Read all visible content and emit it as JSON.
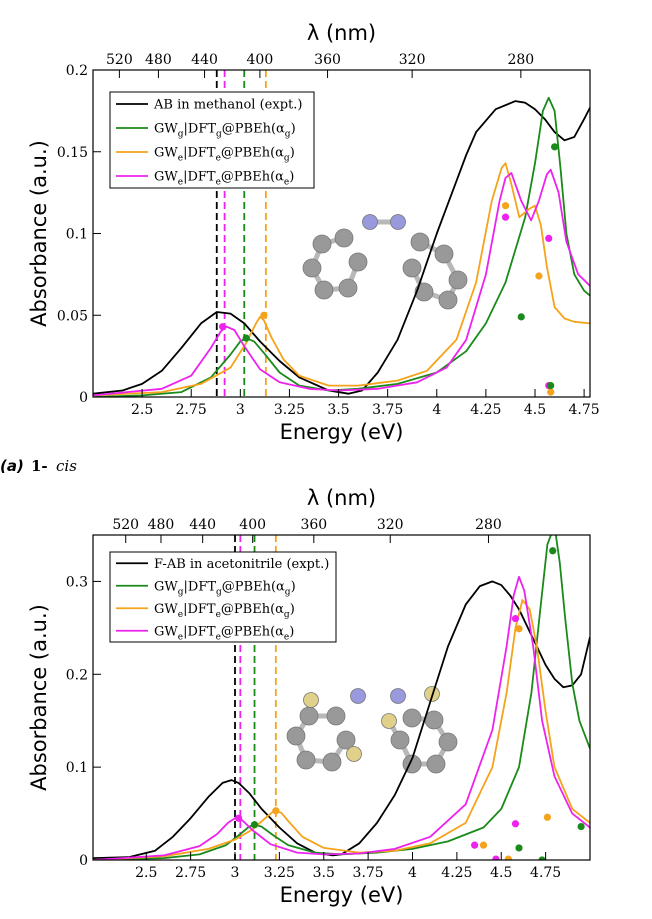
{
  "colors": {
    "expt": "#000000",
    "gwg": "#1a8a1a",
    "gwe_g": "#f5a31a",
    "gwe_e": "#ee22ee",
    "molecule_atom": "#999999",
    "molecule_n": "#9999dd",
    "molecule_f": "#e0d08a"
  },
  "caption": {
    "label": "(a)",
    "compound": "1-",
    "isomer": "cis"
  },
  "chart_data": [
    {
      "type": "line",
      "panel": "a",
      "xlabel": "Energy (eV)",
      "ylabel": "Absorbance (a.u.)",
      "top_xlabel": "λ (nm)",
      "xlim": [
        2.25,
        4.78
      ],
      "ylim": [
        0,
        0.2
      ],
      "x_ticks": [
        "2.5",
        "2.75",
        "3",
        "3.25",
        "3.5",
        "3.75",
        "4",
        "4.25",
        "4.5",
        "4.75"
      ],
      "x_tick_values": [
        2.5,
        2.75,
        3.0,
        3.25,
        3.5,
        3.75,
        4.0,
        4.25,
        4.5,
        4.75
      ],
      "y_ticks": [
        "0",
        "0.05",
        "0.1",
        "0.15",
        "0.2"
      ],
      "y_tick_values": [
        0,
        0.05,
        0.1,
        0.15,
        0.2
      ],
      "top_ticks": [
        "520",
        "480",
        "440",
        "400",
        "360",
        "320",
        "280"
      ],
      "top_tick_values": [
        520,
        480,
        440,
        400,
        360,
        320,
        280
      ],
      "legend": [
        {
          "key": "expt",
          "text": "AB in methanol (expt.)"
        },
        {
          "key": "gwg",
          "parts": [
            [
              "GW",
              ""
            ],
            [
              "g",
              "sub"
            ],
            [
              "|DFT",
              ""
            ],
            [
              "g",
              "sub"
            ],
            [
              "@PBEh(α",
              ""
            ],
            [
              "g",
              "sub"
            ],
            [
              ")",
              ""
            ]
          ]
        },
        {
          "key": "gwe_g",
          "parts": [
            [
              "GW",
              ""
            ],
            [
              "e",
              "sub"
            ],
            [
              "|DFT",
              ""
            ],
            [
              "e",
              "sub"
            ],
            [
              "@PBEh(α",
              ""
            ],
            [
              "g",
              "sub"
            ],
            [
              ")",
              ""
            ]
          ]
        },
        {
          "key": "gwe_e",
          "parts": [
            [
              "GW",
              ""
            ],
            [
              "e",
              "sub"
            ],
            [
              "|DFT",
              ""
            ],
            [
              "e",
              "sub"
            ],
            [
              "@PBEh(α",
              ""
            ],
            [
              "e",
              "sub"
            ],
            [
              ")",
              ""
            ]
          ]
        }
      ],
      "series": [
        {
          "key": "expt",
          "x": [
            2.25,
            2.4,
            2.5,
            2.6,
            2.7,
            2.8,
            2.88,
            2.95,
            3.02,
            3.1,
            3.2,
            3.3,
            3.45,
            3.55,
            3.62,
            3.7,
            3.8,
            3.9,
            4.0,
            4.05,
            4.1,
            4.15,
            4.2,
            4.3,
            4.4,
            4.45,
            4.5,
            4.55,
            4.6,
            4.65,
            4.7,
            4.75,
            4.78
          ],
          "y": [
            0.002,
            0.004,
            0.008,
            0.016,
            0.03,
            0.045,
            0.052,
            0.051,
            0.045,
            0.034,
            0.022,
            0.012,
            0.004,
            0.002,
            0.004,
            0.015,
            0.035,
            0.065,
            0.1,
            0.116,
            0.132,
            0.148,
            0.162,
            0.176,
            0.181,
            0.18,
            0.176,
            0.17,
            0.162,
            0.157,
            0.159,
            0.17,
            0.177
          ]
        },
        {
          "key": "gwg",
          "x": [
            2.25,
            2.5,
            2.7,
            2.85,
            2.95,
            3.0,
            3.03,
            3.07,
            3.12,
            3.2,
            3.3,
            3.45,
            3.6,
            3.8,
            4.0,
            4.15,
            4.25,
            4.35,
            4.45,
            4.5,
            4.54,
            4.57,
            4.6,
            4.63,
            4.66,
            4.7,
            4.75,
            4.78
          ],
          "y": [
            0.0,
            0.001,
            0.003,
            0.012,
            0.026,
            0.034,
            0.036,
            0.034,
            0.027,
            0.015,
            0.007,
            0.004,
            0.005,
            0.008,
            0.015,
            0.028,
            0.045,
            0.07,
            0.11,
            0.143,
            0.175,
            0.183,
            0.175,
            0.14,
            0.1,
            0.075,
            0.065,
            0.062
          ]
        },
        {
          "key": "gwe_g",
          "x": [
            2.25,
            2.6,
            2.8,
            2.95,
            3.03,
            3.08,
            3.1,
            3.12,
            3.16,
            3.22,
            3.3,
            3.45,
            3.6,
            3.8,
            3.95,
            4.1,
            4.2,
            4.28,
            4.33,
            4.35,
            4.38,
            4.42,
            4.47,
            4.5,
            4.53,
            4.56,
            4.6,
            4.65,
            4.7,
            4.78
          ],
          "y": [
            0.001,
            0.003,
            0.008,
            0.018,
            0.033,
            0.045,
            0.049,
            0.047,
            0.036,
            0.023,
            0.013,
            0.007,
            0.007,
            0.01,
            0.016,
            0.035,
            0.07,
            0.12,
            0.14,
            0.143,
            0.13,
            0.11,
            0.115,
            0.117,
            0.105,
            0.08,
            0.055,
            0.048,
            0.046,
            0.045
          ]
        },
        {
          "key": "gwe_e",
          "x": [
            2.25,
            2.6,
            2.75,
            2.85,
            2.9,
            2.93,
            2.97,
            3.02,
            3.1,
            3.2,
            3.35,
            3.5,
            3.7,
            3.9,
            4.05,
            4.15,
            4.25,
            4.32,
            4.35,
            4.38,
            4.43,
            4.48,
            4.52,
            4.56,
            4.58,
            4.62,
            4.66,
            4.72,
            4.78
          ],
          "y": [
            0.001,
            0.005,
            0.013,
            0.03,
            0.04,
            0.043,
            0.041,
            0.031,
            0.017,
            0.009,
            0.005,
            0.004,
            0.005,
            0.009,
            0.018,
            0.035,
            0.075,
            0.12,
            0.134,
            0.137,
            0.12,
            0.108,
            0.12,
            0.136,
            0.139,
            0.125,
            0.095,
            0.075,
            0.068
          ]
        }
      ],
      "vlines": [
        {
          "key": "expt",
          "x": 2.88
        },
        {
          "key": "gwe_e",
          "x": 2.92
        },
        {
          "key": "gwg",
          "x": 3.02
        },
        {
          "key": "gwe_g",
          "x": 3.13
        }
      ],
      "points": [
        {
          "key": "gwe_e",
          "x": 2.91,
          "y": 0.043
        },
        {
          "key": "gwg",
          "x": 3.03,
          "y": 0.036
        },
        {
          "key": "gwe_g",
          "x": 3.12,
          "y": 0.05
        },
        {
          "key": "gwe_g",
          "x": 4.35,
          "y": 0.117
        },
        {
          "key": "gwe_e",
          "x": 4.35,
          "y": 0.11
        },
        {
          "key": "gwe_g",
          "x": 4.52,
          "y": 0.074
        },
        {
          "key": "gwe_e",
          "x": 4.57,
          "y": 0.097
        },
        {
          "key": "gwg",
          "x": 4.43,
          "y": 0.049
        },
        {
          "key": "gwg",
          "x": 4.6,
          "y": 0.153
        },
        {
          "key": "gwe_g",
          "x": 4.58,
          "y": 0.003
        },
        {
          "key": "gwe_e",
          "x": 4.57,
          "y": 0.007
        },
        {
          "key": "gwg",
          "x": 4.58,
          "y": 0.007
        }
      ]
    },
    {
      "type": "line",
      "panel": "b",
      "xlabel": "Energy (eV)",
      "ylabel": "Absorbance (a.u.)",
      "top_xlabel": "λ (nm)",
      "xlim": [
        2.2,
        5.0
      ],
      "ylim": [
        0,
        0.35
      ],
      "x_ticks": [
        "2.5",
        "2.75",
        "3",
        "3.25",
        "3.5",
        "3.75",
        "4",
        "4.25",
        "4.5",
        "4.75"
      ],
      "x_tick_values": [
        2.5,
        2.75,
        3.0,
        3.25,
        3.5,
        3.75,
        4.0,
        4.25,
        4.5,
        4.75
      ],
      "y_ticks": [
        "0",
        "0.1",
        "0.2",
        "0.3"
      ],
      "y_tick_values": [
        0,
        0.1,
        0.2,
        0.3
      ],
      "top_ticks": [
        "520",
        "480",
        "440",
        "400",
        "360",
        "320",
        "280"
      ],
      "top_tick_values": [
        520,
        480,
        440,
        400,
        360,
        320,
        280
      ],
      "legend": [
        {
          "key": "expt",
          "text": "F-AB in acetonitrile (expt.)"
        },
        {
          "key": "gwg",
          "parts": [
            [
              "GW",
              ""
            ],
            [
              "g",
              "sub"
            ],
            [
              "|DFT",
              ""
            ],
            [
              "g",
              "sub"
            ],
            [
              "@PBEh(α",
              ""
            ],
            [
              "g",
              "sub"
            ],
            [
              ")",
              ""
            ]
          ]
        },
        {
          "key": "gwe_g",
          "parts": [
            [
              "GW",
              ""
            ],
            [
              "e",
              "sub"
            ],
            [
              "|DFT",
              ""
            ],
            [
              "e",
              "sub"
            ],
            [
              "@PBEh(α",
              ""
            ],
            [
              "g",
              "sub"
            ],
            [
              ")",
              ""
            ]
          ]
        },
        {
          "key": "gwe_e",
          "parts": [
            [
              "GW",
              ""
            ],
            [
              "e",
              "sub"
            ],
            [
              "|DFT",
              ""
            ],
            [
              "e",
              "sub"
            ],
            [
              "@PBEh(α",
              ""
            ],
            [
              "e",
              "sub"
            ],
            [
              ")",
              ""
            ]
          ]
        }
      ],
      "series": [
        {
          "key": "expt",
          "x": [
            2.2,
            2.4,
            2.55,
            2.65,
            2.75,
            2.85,
            2.93,
            2.98,
            3.02,
            3.08,
            3.15,
            3.25,
            3.35,
            3.45,
            3.55,
            3.6,
            3.7,
            3.8,
            3.9,
            4.0,
            4.1,
            4.2,
            4.3,
            4.38,
            4.45,
            4.5,
            4.55,
            4.6,
            4.65,
            4.7,
            4.75,
            4.8,
            4.85,
            4.9,
            4.95,
            5.0
          ],
          "y": [
            0.002,
            0.003,
            0.01,
            0.025,
            0.045,
            0.068,
            0.083,
            0.086,
            0.083,
            0.072,
            0.055,
            0.035,
            0.018,
            0.008,
            0.005,
            0.006,
            0.018,
            0.04,
            0.07,
            0.11,
            0.17,
            0.23,
            0.275,
            0.295,
            0.3,
            0.296,
            0.285,
            0.27,
            0.25,
            0.23,
            0.21,
            0.195,
            0.186,
            0.188,
            0.2,
            0.24
          ]
        },
        {
          "key": "gwg",
          "x": [
            2.2,
            2.6,
            2.8,
            2.95,
            3.03,
            3.08,
            3.11,
            3.15,
            3.22,
            3.3,
            3.45,
            3.6,
            3.8,
            4.0,
            4.2,
            4.4,
            4.5,
            4.6,
            4.67,
            4.72,
            4.76,
            4.8,
            4.83,
            4.86,
            4.9,
            4.94,
            5.0
          ],
          "y": [
            0.0,
            0.002,
            0.006,
            0.016,
            0.028,
            0.036,
            0.038,
            0.036,
            0.026,
            0.016,
            0.008,
            0.006,
            0.008,
            0.012,
            0.02,
            0.035,
            0.055,
            0.1,
            0.18,
            0.27,
            0.34,
            0.36,
            0.32,
            0.26,
            0.19,
            0.15,
            0.12
          ]
        },
        {
          "key": "gwe_g",
          "x": [
            2.2,
            2.6,
            2.85,
            3.0,
            3.1,
            3.17,
            3.22,
            3.26,
            3.3,
            3.38,
            3.5,
            3.7,
            3.9,
            4.1,
            4.3,
            4.45,
            4.53,
            4.58,
            4.62,
            4.66,
            4.7,
            4.75,
            4.8,
            4.9,
            5.0
          ],
          "y": [
            0.0,
            0.004,
            0.012,
            0.022,
            0.033,
            0.045,
            0.053,
            0.051,
            0.042,
            0.025,
            0.013,
            0.008,
            0.01,
            0.018,
            0.04,
            0.1,
            0.18,
            0.25,
            0.28,
            0.27,
            0.23,
            0.16,
            0.1,
            0.055,
            0.04
          ]
        },
        {
          "key": "gwe_e",
          "x": [
            2.2,
            2.6,
            2.8,
            2.9,
            2.96,
            3.0,
            3.04,
            3.1,
            3.2,
            3.35,
            3.5,
            3.7,
            3.9,
            4.1,
            4.3,
            4.45,
            4.53,
            4.57,
            4.6,
            4.63,
            4.68,
            4.73,
            4.8,
            4.9,
            5.0
          ],
          "y": [
            0.0,
            0.005,
            0.015,
            0.028,
            0.04,
            0.045,
            0.043,
            0.032,
            0.017,
            0.008,
            0.006,
            0.007,
            0.012,
            0.025,
            0.06,
            0.14,
            0.23,
            0.285,
            0.305,
            0.29,
            0.23,
            0.15,
            0.09,
            0.05,
            0.035
          ]
        }
      ],
      "vlines": [
        {
          "key": "expt",
          "x": 3.0
        },
        {
          "key": "gwe_e",
          "x": 3.03
        },
        {
          "key": "gwg",
          "x": 3.11
        },
        {
          "key": "gwe_g",
          "x": 3.23
        }
      ],
      "points": [
        {
          "key": "gwe_e",
          "x": 3.02,
          "y": 0.045
        },
        {
          "key": "gwg",
          "x": 3.11,
          "y": 0.038
        },
        {
          "key": "gwe_g",
          "x": 3.23,
          "y": 0.053
        },
        {
          "key": "gwe_e",
          "x": 4.58,
          "y": 0.26
        },
        {
          "key": "gwe_g",
          "x": 4.6,
          "y": 0.249
        },
        {
          "key": "gwg",
          "x": 4.79,
          "y": 0.333
        },
        {
          "key": "gwe_e",
          "x": 4.35,
          "y": 0.016
        },
        {
          "key": "gwe_g",
          "x": 4.4,
          "y": 0.016
        },
        {
          "key": "gwe_e",
          "x": 4.47,
          "y": 0.001
        },
        {
          "key": "gwe_g",
          "x": 4.54,
          "y": 0.001
        },
        {
          "key": "gwe_e",
          "x": 4.58,
          "y": 0.039
        },
        {
          "key": "gwg",
          "x": 4.6,
          "y": 0.013
        },
        {
          "key": "gwe_g",
          "x": 4.76,
          "y": 0.046
        },
        {
          "key": "gwg",
          "x": 4.73,
          "y": 0.0
        },
        {
          "key": "gwg",
          "x": 4.95,
          "y": 0.036
        }
      ]
    }
  ]
}
